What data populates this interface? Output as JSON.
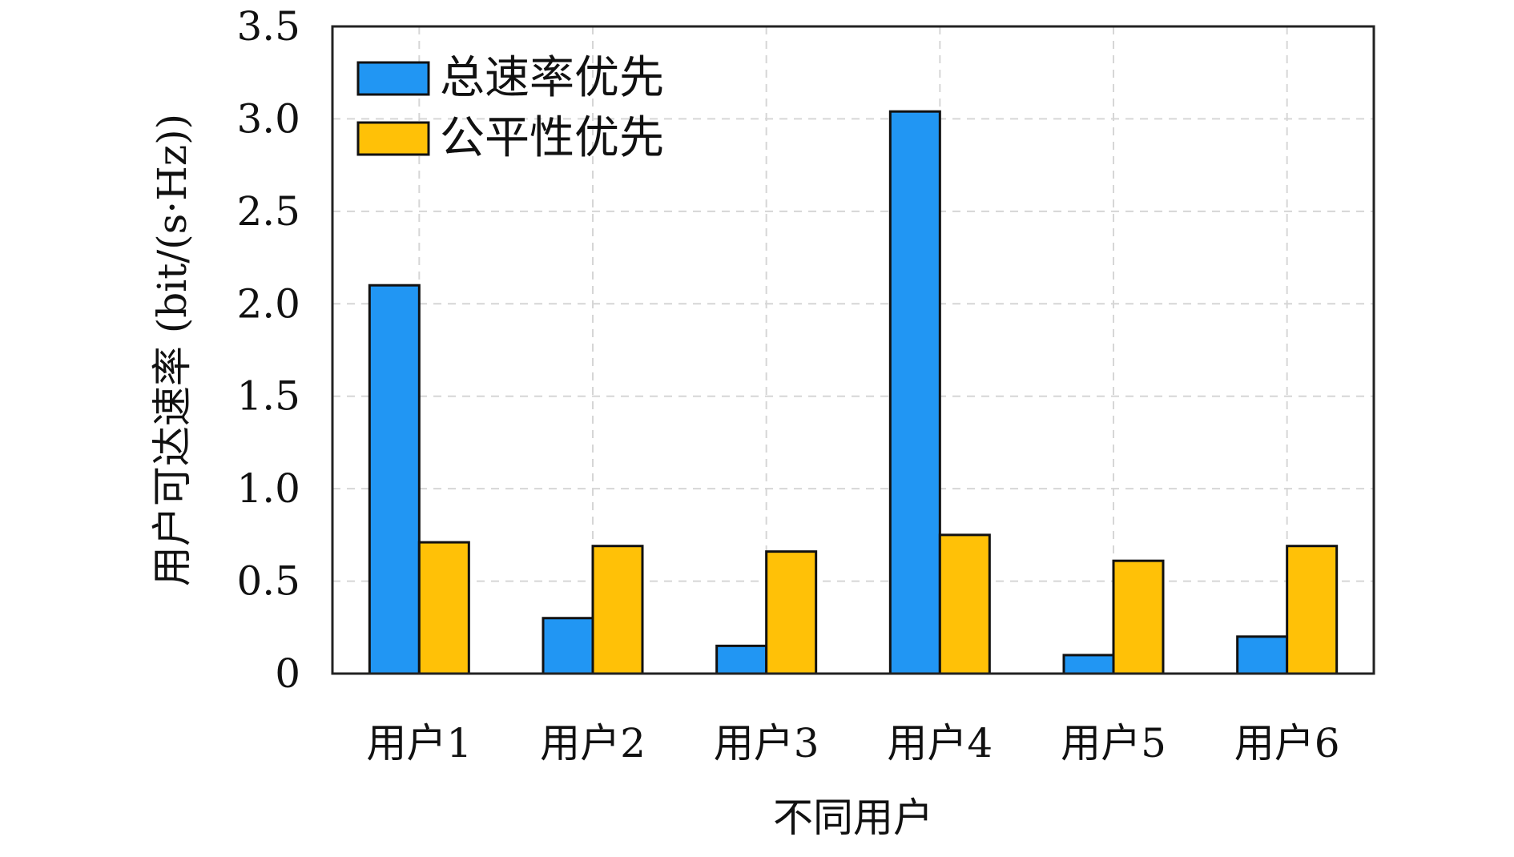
{
  "chart_data": {
    "type": "bar",
    "categories": [
      "用户1",
      "用户2",
      "用户3",
      "用户4",
      "用户5",
      "用户6"
    ],
    "series": [
      {
        "name": "总速率优先",
        "values": [
          2.1,
          0.3,
          0.15,
          3.04,
          0.1,
          0.2
        ],
        "color": "#2196F3"
      },
      {
        "name": "公平性优先",
        "values": [
          0.71,
          0.69,
          0.66,
          0.75,
          0.61,
          0.69
        ],
        "color": "#FFC107"
      }
    ],
    "title": "",
    "xlabel": "不同用户",
    "ylabel": "用户可达速率 (bit/(s·Hz))",
    "ylim": [
      0,
      3.5
    ],
    "yticks": [
      0,
      0.5,
      1.0,
      1.5,
      2.0,
      2.5,
      3.0,
      3.5
    ],
    "ytick_labels": [
      "0",
      "0.5",
      "1.0",
      "1.5",
      "2.0",
      "2.5",
      "3.0",
      "3.5"
    ],
    "grid": true,
    "legend_position": "top-left"
  }
}
